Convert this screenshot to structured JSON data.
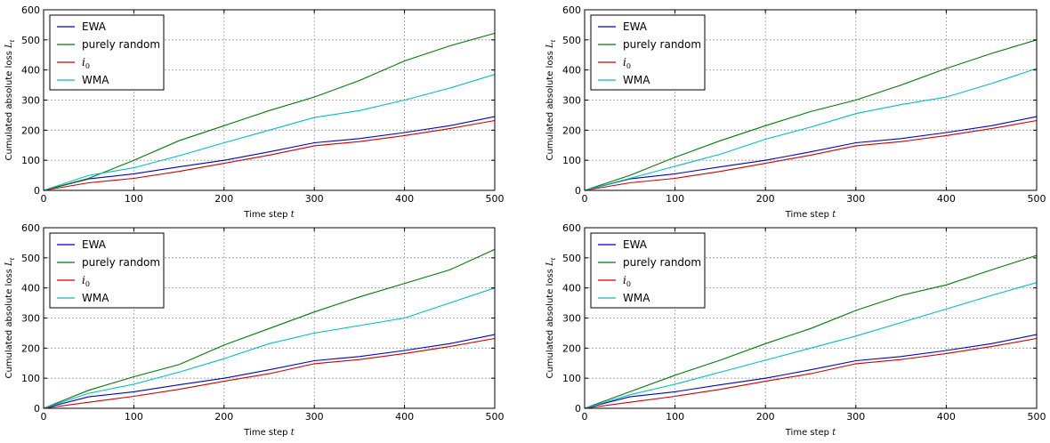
{
  "chart_data": [
    {
      "type": "line",
      "xlabel": "Time step t",
      "ylabel": "Cumulated absolute loss L_t",
      "xlim": [
        0,
        500
      ],
      "ylim": [
        0,
        600
      ],
      "xticks": [
        "0",
        "100",
        "200",
        "300",
        "400",
        "500"
      ],
      "yticks": [
        "0",
        "100",
        "200",
        "300",
        "400",
        "500",
        "600"
      ],
      "grid": true,
      "legend_position": "upper-left",
      "series": [
        {
          "name": "EWA",
          "color": "#0000cc",
          "x": [
            0,
            50,
            100,
            150,
            200,
            250,
            300,
            350,
            400,
            450,
            500
          ],
          "y": [
            0,
            38,
            55,
            78,
            100,
            128,
            158,
            172,
            192,
            215,
            245
          ]
        },
        {
          "name": "purely random",
          "color": "#007a00",
          "x": [
            0,
            50,
            100,
            150,
            200,
            250,
            300,
            350,
            400,
            450,
            500
          ],
          "y": [
            0,
            40,
            100,
            165,
            215,
            265,
            310,
            365,
            430,
            480,
            522
          ]
        },
        {
          "name": "i0",
          "color": "#cc0000",
          "x": [
            0,
            50,
            100,
            150,
            200,
            250,
            300,
            350,
            400,
            450,
            500
          ],
          "y": [
            0,
            25,
            40,
            63,
            90,
            117,
            148,
            162,
            182,
            205,
            232
          ]
        },
        {
          "name": "WMA",
          "color": "#00bfbf",
          "x": [
            0,
            50,
            100,
            150,
            200,
            250,
            300,
            350,
            400,
            450,
            500
          ],
          "y": [
            0,
            50,
            75,
            115,
            158,
            200,
            242,
            265,
            300,
            340,
            385
          ]
        }
      ]
    },
    {
      "type": "line",
      "xlabel": "Time step t",
      "ylabel": "Cumulated absolute loss L_t",
      "xlim": [
        0,
        500
      ],
      "ylim": [
        0,
        600
      ],
      "xticks": [
        "0",
        "100",
        "200",
        "300",
        "400",
        "500"
      ],
      "yticks": [
        "0",
        "100",
        "200",
        "300",
        "400",
        "500",
        "600"
      ],
      "grid": true,
      "legend_position": "upper-left",
      "series": [
        {
          "name": "EWA",
          "color": "#0000cc",
          "x": [
            0,
            50,
            100,
            150,
            200,
            250,
            300,
            350,
            400,
            450,
            500
          ],
          "y": [
            0,
            38,
            55,
            78,
            100,
            128,
            158,
            172,
            192,
            215,
            245
          ]
        },
        {
          "name": "purely random",
          "color": "#007a00",
          "x": [
            0,
            50,
            100,
            150,
            200,
            250,
            300,
            350,
            400,
            450,
            500
          ],
          "y": [
            0,
            50,
            110,
            165,
            215,
            262,
            300,
            350,
            405,
            455,
            500
          ]
        },
        {
          "name": "i0",
          "color": "#cc0000",
          "x": [
            0,
            50,
            100,
            150,
            200,
            250,
            300,
            350,
            400,
            450,
            500
          ],
          "y": [
            0,
            25,
            40,
            63,
            90,
            117,
            148,
            162,
            182,
            205,
            232
          ]
        },
        {
          "name": "WMA",
          "color": "#00bfbf",
          "x": [
            0,
            50,
            100,
            150,
            200,
            250,
            300,
            350,
            400,
            450,
            500
          ],
          "y": [
            0,
            40,
            80,
            120,
            170,
            210,
            255,
            285,
            310,
            355,
            405
          ]
        }
      ]
    },
    {
      "type": "line",
      "xlabel": "Time step t",
      "ylabel": "Cumulated absolute loss L_t",
      "xlim": [
        0,
        500
      ],
      "ylim": [
        0,
        600
      ],
      "xticks": [
        "0",
        "100",
        "200",
        "300",
        "400",
        "500"
      ],
      "yticks": [
        "0",
        "100",
        "200",
        "300",
        "400",
        "500",
        "600"
      ],
      "grid": true,
      "legend_position": "upper-left",
      "series": [
        {
          "name": "EWA",
          "color": "#0000cc",
          "x": [
            0,
            50,
            100,
            150,
            200,
            250,
            300,
            350,
            400,
            450,
            500
          ],
          "y": [
            0,
            38,
            55,
            78,
            100,
            128,
            158,
            172,
            192,
            215,
            245
          ]
        },
        {
          "name": "purely random",
          "color": "#007a00",
          "x": [
            0,
            50,
            100,
            150,
            200,
            250,
            300,
            350,
            400,
            450,
            500
          ],
          "y": [
            0,
            60,
            105,
            145,
            210,
            265,
            320,
            370,
            415,
            460,
            528
          ]
        },
        {
          "name": "i0",
          "color": "#cc0000",
          "x": [
            0,
            50,
            100,
            150,
            200,
            250,
            300,
            350,
            400,
            450,
            500
          ],
          "y": [
            0,
            20,
            40,
            63,
            90,
            115,
            148,
            162,
            182,
            205,
            232
          ]
        },
        {
          "name": "WMA",
          "color": "#00bfbf",
          "x": [
            0,
            50,
            100,
            150,
            200,
            250,
            300,
            350,
            400,
            450,
            500
          ],
          "y": [
            0,
            50,
            80,
            120,
            165,
            215,
            250,
            275,
            300,
            350,
            400
          ]
        }
      ]
    },
    {
      "type": "line",
      "xlabel": "Time step t",
      "ylabel": "Cumulated absolute loss L_t",
      "xlim": [
        0,
        500
      ],
      "ylim": [
        0,
        600
      ],
      "xticks": [
        "0",
        "100",
        "200",
        "300",
        "400",
        "500"
      ],
      "yticks": [
        "0",
        "100",
        "200",
        "300",
        "400",
        "500",
        "600"
      ],
      "grid": true,
      "legend_position": "upper-left",
      "series": [
        {
          "name": "EWA",
          "color": "#0000cc",
          "x": [
            0,
            50,
            100,
            150,
            200,
            250,
            300,
            350,
            400,
            450,
            500
          ],
          "y": [
            0,
            38,
            55,
            78,
            100,
            128,
            158,
            172,
            192,
            215,
            245
          ]
        },
        {
          "name": "purely random",
          "color": "#007a00",
          "x": [
            0,
            50,
            100,
            150,
            200,
            250,
            300,
            350,
            400,
            450,
            500
          ],
          "y": [
            0,
            55,
            110,
            160,
            215,
            265,
            325,
            375,
            410,
            460,
            508
          ]
        },
        {
          "name": "i0",
          "color": "#cc0000",
          "x": [
            0,
            50,
            100,
            150,
            200,
            250,
            300,
            350,
            400,
            450,
            500
          ],
          "y": [
            0,
            20,
            40,
            63,
            90,
            115,
            148,
            162,
            182,
            205,
            232
          ]
        },
        {
          "name": "WMA",
          "color": "#00bfbf",
          "x": [
            0,
            50,
            100,
            150,
            200,
            250,
            300,
            350,
            400,
            450,
            500
          ],
          "y": [
            0,
            45,
            80,
            120,
            160,
            200,
            240,
            285,
            330,
            375,
            418
          ]
        }
      ]
    }
  ]
}
